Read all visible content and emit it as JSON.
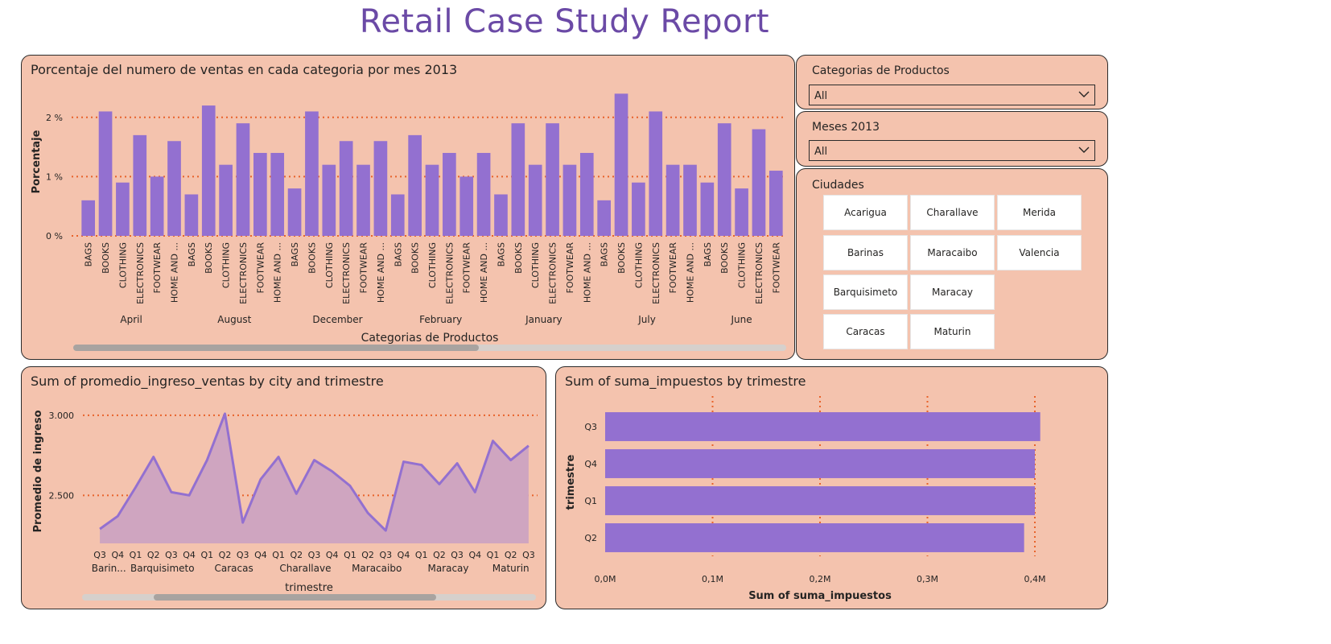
{
  "report": {
    "title": "Retail Case Study Report"
  },
  "colors": {
    "bar": "#9370d0",
    "panel": "#f4c3ae",
    "grid": "#e8632b",
    "area_fill": "#cfa5c0",
    "title": "#6b4aa6"
  },
  "filters": {
    "categorias": {
      "title": "Categorias de Productos",
      "value": "All",
      "icon": "chevron-down-icon"
    },
    "meses": {
      "title": "Meses 2013",
      "value": "All",
      "icon": "chevron-down-icon"
    },
    "ciudades": {
      "title": "Ciudades",
      "buttons": [
        "Acarigua",
        "Charallave",
        "Merida",
        "Barinas",
        "Maracaibo",
        "Valencia",
        "Barquisimeto",
        "Maracay",
        "Caracas",
        "Maturin"
      ]
    }
  },
  "chart_data": [
    {
      "type": "bar",
      "title": "Porcentaje del numero de ventas en cada categoria por mes 2013",
      "xlabel": "Categorias de Productos",
      "ylabel": "Porcentaje",
      "yticks": [
        "0 %",
        "1 %",
        "2 %"
      ],
      "ylim": [
        0,
        2.5
      ],
      "grid": true,
      "categories": [
        "BAGS",
        "BOOKS",
        "CLOTHING",
        "ELECTRONICS",
        "FOOTWEAR",
        "HOME AND ...",
        "BAGS",
        "BOOKS",
        "CLOTHING",
        "ELECTRONICS",
        "FOOTWEAR",
        "HOME AND ...",
        "BAGS",
        "BOOKS",
        "CLOTHING",
        "ELECTRONICS",
        "FOOTWEAR",
        "HOME AND ...",
        "BAGS",
        "BOOKS",
        "CLOTHING",
        "ELECTRONICS",
        "FOOTWEAR",
        "HOME AND ...",
        "BAGS",
        "BOOKS",
        "CLOTHING",
        "ELECTRONICS",
        "FOOTWEAR",
        "HOME AND ...",
        "BAGS",
        "BOOKS",
        "CLOTHING",
        "ELECTRONICS",
        "FOOTWEAR",
        "HOME AND ...",
        "BAGS",
        "BOOKS",
        "CLOTHING",
        "ELECTRONICS",
        "FOOTWEAR"
      ],
      "groups": [
        {
          "label": "April",
          "count": 6
        },
        {
          "label": "August",
          "count": 6
        },
        {
          "label": "December",
          "count": 6
        },
        {
          "label": "February",
          "count": 6
        },
        {
          "label": "January",
          "count": 6
        },
        {
          "label": "July",
          "count": 6
        },
        {
          "label": "June",
          "count": 5
        }
      ],
      "values": [
        0.6,
        2.1,
        0.9,
        1.7,
        1.0,
        1.6,
        0.7,
        2.2,
        1.2,
        1.9,
        1.4,
        1.4,
        0.8,
        2.1,
        1.2,
        1.6,
        1.2,
        1.6,
        0.7,
        1.7,
        1.2,
        1.4,
        1.0,
        1.4,
        0.7,
        1.9,
        1.2,
        1.9,
        1.2,
        1.4,
        0.6,
        2.4,
        0.9,
        2.1,
        1.2,
        1.2,
        0.9,
        1.9,
        0.8,
        1.8,
        1.1
      ]
    },
    {
      "type": "area",
      "title": "Sum of promedio_ingreso_ventas by city and trimestre",
      "xlabel": "trimestre",
      "ylabel": "Promedio de ingreso",
      "yticks": [
        "2.500",
        "3.000"
      ],
      "ylim": [
        2200,
        3100
      ],
      "grid": true,
      "x": [
        "Q3",
        "Q4",
        "Q1",
        "Q2",
        "Q3",
        "Q4",
        "Q1",
        "Q2",
        "Q3",
        "Q4",
        "Q1",
        "Q2",
        "Q3",
        "Q4",
        "Q1",
        "Q2",
        "Q3",
        "Q4",
        "Q1",
        "Q2",
        "Q3",
        "Q4",
        "Q1",
        "Q2",
        "Q3"
      ],
      "groups": [
        {
          "label": "Barin...",
          "count": 2
        },
        {
          "label": "Barquisimeto",
          "count": 4
        },
        {
          "label": "Caracas",
          "count": 4
        },
        {
          "label": "Charallave",
          "count": 4
        },
        {
          "label": "Maracaibo",
          "count": 4
        },
        {
          "label": "Maracay",
          "count": 4
        },
        {
          "label": "Maturin",
          "count": 3
        }
      ],
      "values": [
        2290,
        2370,
        2550,
        2740,
        2520,
        2500,
        2720,
        3010,
        2330,
        2600,
        2740,
        2510,
        2720,
        2650,
        2560,
        2390,
        2280,
        2710,
        2690,
        2570,
        2700,
        2520,
        2840,
        2720,
        2810
      ]
    },
    {
      "type": "bar",
      "orientation": "horizontal",
      "title": "Sum of suma_impuestos by trimestre",
      "xlabel": "Sum of suma_impuestos",
      "ylabel": "trimestre",
      "xticks": [
        "0,0M",
        "0,1M",
        "0,2M",
        "0,3M",
        "0,4M"
      ],
      "xlim": [
        0,
        0.4
      ],
      "grid": true,
      "categories": [
        "Q3",
        "Q4",
        "Q1",
        "Q2"
      ],
      "values": [
        0.405,
        0.4,
        0.4,
        0.39
      ]
    }
  ]
}
